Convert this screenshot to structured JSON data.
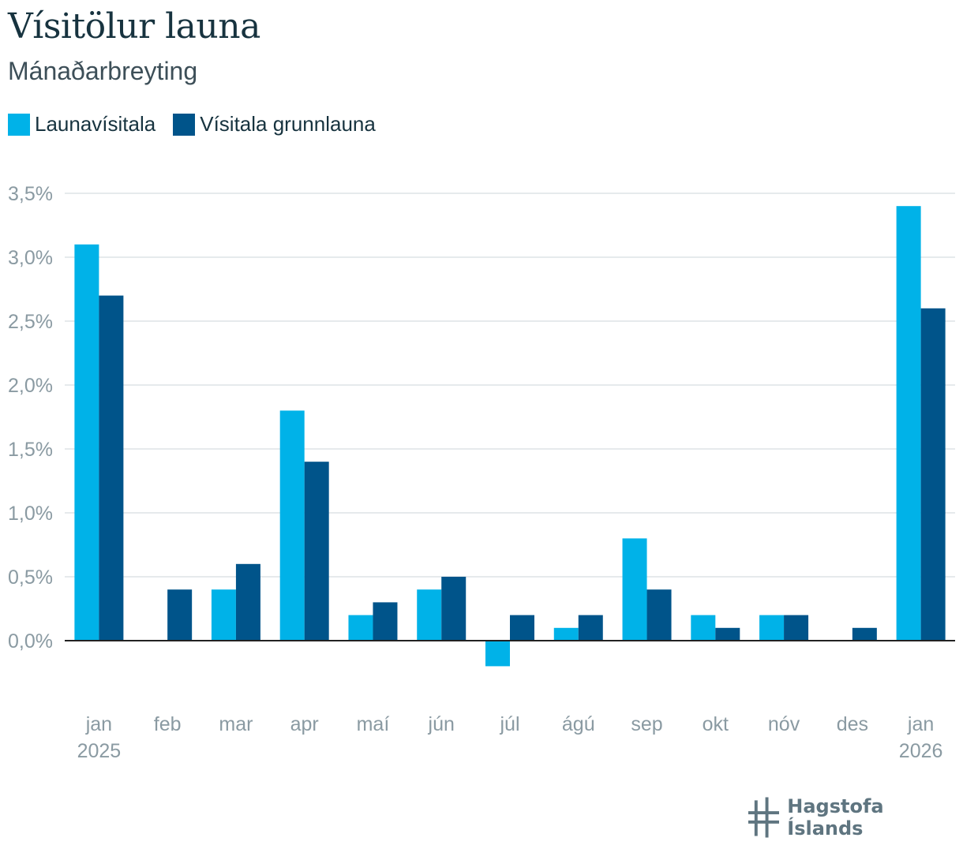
{
  "title": "Vísitölur launa",
  "subtitle": "Mánaðarbreyting",
  "brand": "Hagstofa Íslands",
  "colors": {
    "series1": "#00b2e8",
    "series2": "#00548a",
    "grid": "#dde3e6",
    "axis": "#222222",
    "tick_text": "#8a9aa2"
  },
  "icons": {
    "logo": "hagstofa-logo-icon"
  },
  "chart_data": {
    "type": "bar",
    "categories": [
      "jan",
      "feb",
      "mar",
      "apr",
      "maí",
      "jún",
      "júl",
      "ágú",
      "sep",
      "okt",
      "nóv",
      "des",
      "jan"
    ],
    "category_sublabels": [
      "2025",
      "",
      "",
      "",
      "",
      "",
      "",
      "",
      "",
      "",
      "",
      "",
      "2026"
    ],
    "series": [
      {
        "name": "Launavísitala",
        "values": [
          3.1,
          0.0,
          0.4,
          1.8,
          0.2,
          0.4,
          -0.2,
          0.1,
          0.8,
          0.2,
          0.2,
          0.0,
          3.4
        ]
      },
      {
        "name": "Vísitala grunnlauna",
        "values": [
          2.7,
          0.4,
          0.6,
          1.4,
          0.3,
          0.5,
          0.2,
          0.2,
          0.4,
          0.1,
          0.2,
          0.1,
          2.6
        ]
      }
    ],
    "y_ticks": [
      "0,0%",
      "0,5%",
      "1,0%",
      "1,5%",
      "2,0%",
      "2,5%",
      "3,0%",
      "3,5%"
    ],
    "ylim": [
      -0.5,
      3.5
    ],
    "grid": true,
    "legend": "top-left"
  }
}
